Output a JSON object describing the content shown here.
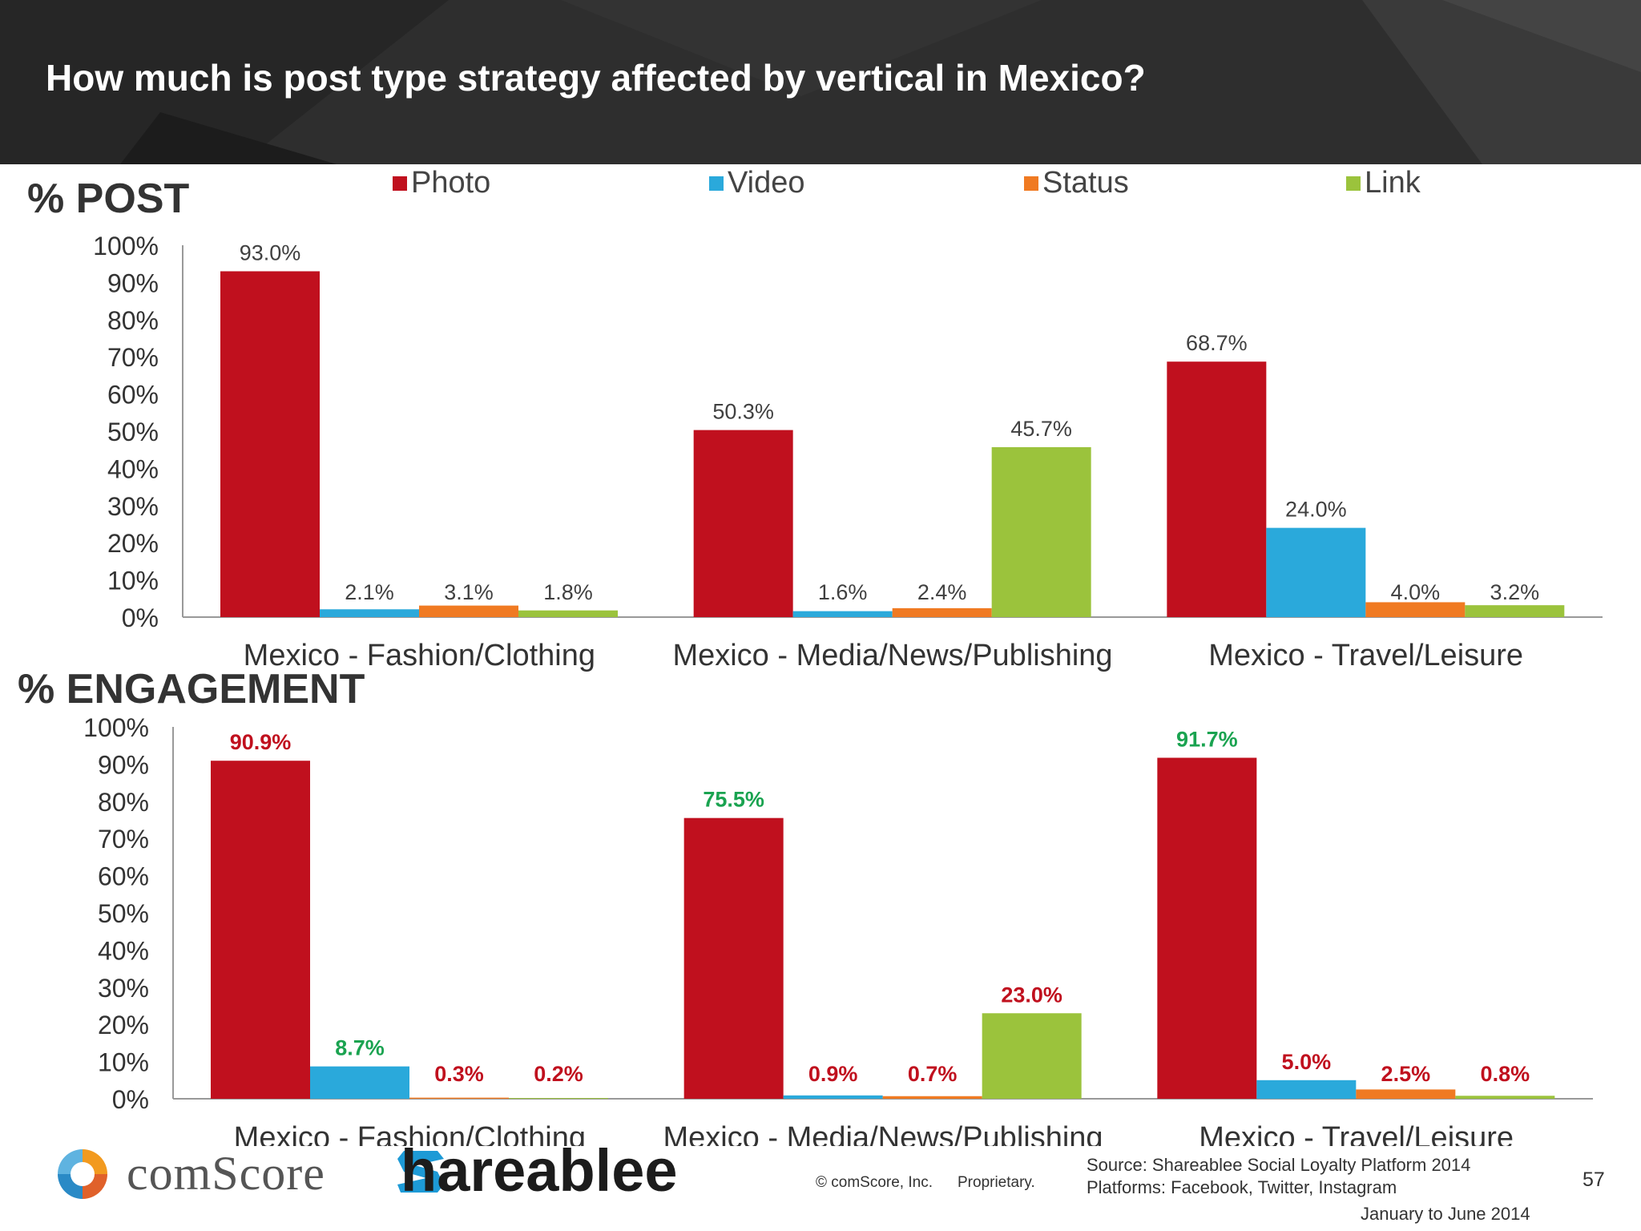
{
  "slide": {
    "title": "How much is post type strategy affected by vertical in Mexico?",
    "page_number": "57"
  },
  "colors": {
    "photo": "#c0101e",
    "video": "#2aa9db",
    "status": "#f07a22",
    "link": "#9bc33c",
    "label_red": "#c0101e",
    "label_green": "#1aa350",
    "label_gray": "#404040"
  },
  "legend": {
    "items": [
      "Photo",
      "Video",
      "Status",
      "Link"
    ]
  },
  "sections": {
    "post_label": "% POST",
    "engagement_label": "% ENGAGEMENT"
  },
  "chart_data": [
    {
      "type": "bar",
      "title": "% POST",
      "categories": [
        "Mexico - Fashion/Clothing",
        "Mexico - Media/News/Publishing",
        "Mexico - Travel/Leisure"
      ],
      "series": [
        {
          "name": "Photo",
          "values": [
            93.0,
            50.3,
            68.7
          ]
        },
        {
          "name": "Video",
          "values": [
            2.1,
            1.6,
            24.0
          ]
        },
        {
          "name": "Status",
          "values": [
            3.1,
            2.4,
            4.0
          ]
        },
        {
          "name": "Link",
          "values": [
            1.8,
            45.7,
            3.2
          ]
        }
      ],
      "labels": [
        [
          "93.0%",
          "2.1%",
          "3.1%",
          "1.8%"
        ],
        [
          "50.3%",
          "1.6%",
          "2.4%",
          "45.7%"
        ],
        [
          "68.7%",
          "24.0%",
          "4.0%",
          "3.2%"
        ]
      ],
      "yticks": [
        "0%",
        "10%",
        "20%",
        "30%",
        "40%",
        "50%",
        "60%",
        "70%",
        "80%",
        "90%",
        "100%"
      ],
      "ylim": [
        0,
        100
      ],
      "legend": "top",
      "grid": false
    },
    {
      "type": "bar",
      "title": "% ENGAGEMENT",
      "categories": [
        "Mexico - Fashion/Clothing",
        "Mexico - Media/News/Publishing",
        "Mexico - Travel/Leisure"
      ],
      "series": [
        {
          "name": "Photo",
          "values": [
            90.9,
            75.5,
            91.7
          ]
        },
        {
          "name": "Video",
          "values": [
            8.7,
            0.9,
            5.0
          ]
        },
        {
          "name": "Status",
          "values": [
            0.3,
            0.7,
            2.5
          ]
        },
        {
          "name": "Link",
          "values": [
            0.2,
            23.0,
            0.8
          ]
        }
      ],
      "labels": [
        [
          "90.9%",
          "8.7%",
          "0.3%",
          "0.2%"
        ],
        [
          "75.5%",
          "0.9%",
          "0.7%",
          "23.0%"
        ],
        [
          "91.7%",
          "5.0%",
          "2.5%",
          "0.8%"
        ]
      ],
      "label_colors": [
        [
          "red",
          "green",
          "red",
          "red"
        ],
        [
          "green",
          "red",
          "red",
          "red"
        ],
        [
          "green",
          "red",
          "red",
          "red"
        ]
      ],
      "yticks": [
        "0%",
        "10%",
        "20%",
        "30%",
        "40%",
        "50%",
        "60%",
        "70%",
        "80%",
        "90%",
        "100%"
      ],
      "ylim": [
        0,
        100
      ],
      "grid": false
    }
  ],
  "footer": {
    "comscore_logo": "comScore",
    "comscore_text": "comScore",
    "shareablee_text": "hareablee",
    "copyright": "© comScore, Inc.",
    "proprietary": "Proprietary.",
    "source_line1": "Source: Shareablee Social Loyalty Platform 2014",
    "source_line2": "Platforms: Facebook, Twitter, Instagram",
    "date_range": "January to June 2014"
  }
}
